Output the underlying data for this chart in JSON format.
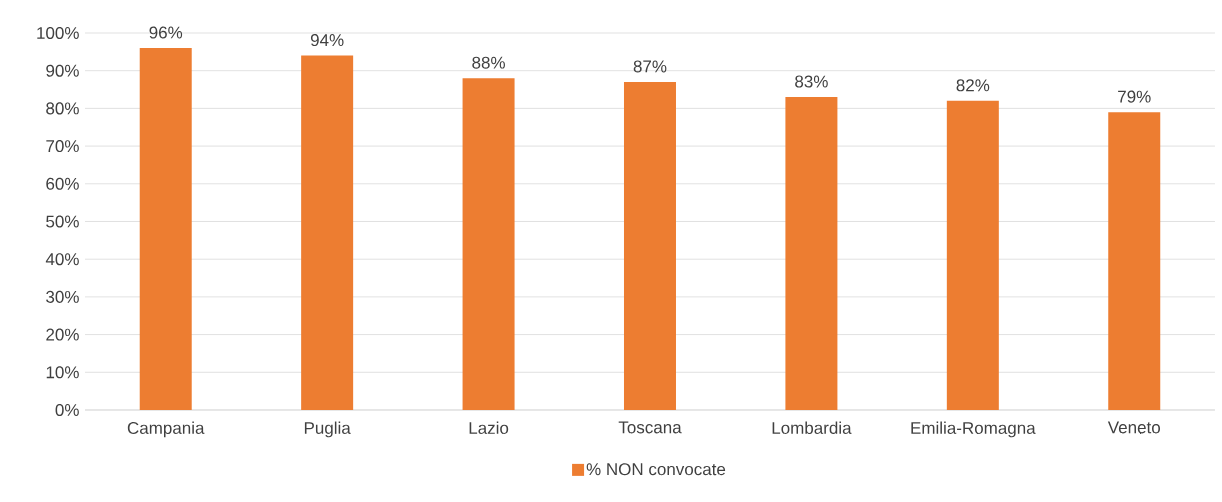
{
  "chart_data": {
    "type": "bar",
    "categories": [
      "Campania",
      "Puglia",
      "Lazio",
      "Toscana",
      "Lombardia",
      "Emilia-Romagna",
      "Veneto"
    ],
    "series": [
      {
        "name": "% NON convocate",
        "color": "#ed7d31",
        "values": [
          96,
          94,
          88,
          87,
          83,
          82,
          79
        ],
        "value_labels": [
          "96%",
          "94%",
          "88%",
          "87%",
          "83%",
          "82%",
          "79%"
        ]
      }
    ],
    "ylim": [
      0,
      100
    ],
    "yticks": [
      {
        "value": 0,
        "label": "0%"
      },
      {
        "value": 10,
        "label": "10%"
      },
      {
        "value": 20,
        "label": "20%"
      },
      {
        "value": 30,
        "label": "30%"
      },
      {
        "value": 40,
        "label": "40%"
      },
      {
        "value": 50,
        "label": "50%"
      },
      {
        "value": 60,
        "label": "60%"
      },
      {
        "value": 70,
        "label": "70%"
      },
      {
        "value": 80,
        "label": "80%"
      },
      {
        "value": 90,
        "label": "90%"
      },
      {
        "value": 100,
        "label": "100%"
      }
    ],
    "grid": "y",
    "legend": "bottom"
  }
}
